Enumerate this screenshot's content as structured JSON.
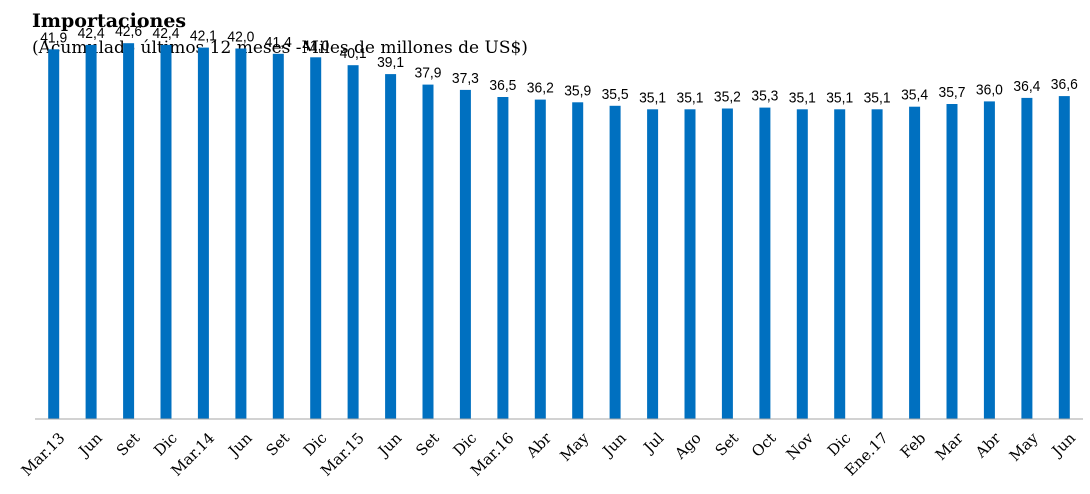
{
  "header": {
    "title": "Importaciones",
    "subtitle": "(Acumulado últimos 12 meses -Miles de millones de US$)"
  },
  "colors": {
    "bar": "#0070C0",
    "axis": "#A6A6A6"
  },
  "chart_data": {
    "type": "bar",
    "title": "Importaciones",
    "subtitle": "(Acumulado últimos 12 meses -Miles de millones de US$)",
    "xlabel": "",
    "ylabel": "",
    "ylim": [
      0,
      45
    ],
    "grid": false,
    "categories": [
      "Mar.13",
      "Jun",
      "Set",
      "Dic",
      "Mar.14",
      "Jun",
      "Set",
      "Dic",
      "Mar.15",
      "Jun",
      "Set",
      "Dic",
      "Mar.16",
      "Abr",
      "May",
      "Jun",
      "Jul",
      "Ago",
      "Set",
      "Oct",
      "Nov",
      "Dic",
      "Ene.17",
      "Feb",
      "Mar",
      "Abr",
      "May",
      "Jun"
    ],
    "values": [
      41.9,
      42.4,
      42.6,
      42.4,
      42.1,
      42.0,
      41.4,
      41.0,
      40.1,
      39.1,
      37.9,
      37.3,
      36.5,
      36.2,
      35.9,
      35.5,
      35.1,
      35.1,
      35.2,
      35.3,
      35.1,
      35.1,
      35.1,
      35.4,
      35.7,
      36.0,
      36.4,
      36.6
    ],
    "data_labels": [
      "41,9",
      "42,4",
      "42,6",
      "42,4",
      "42,1",
      "42,0",
      "41,4",
      "41,0",
      "40,1",
      "39,1",
      "37,9",
      "37,3",
      "36,5",
      "36,2",
      "35,9",
      "35,5",
      "35,1",
      "35,1",
      "35,2",
      "35,3",
      "35,1",
      "35,1",
      "35,1",
      "35,4",
      "35,7",
      "36,0",
      "36,4",
      "36,6"
    ]
  }
}
